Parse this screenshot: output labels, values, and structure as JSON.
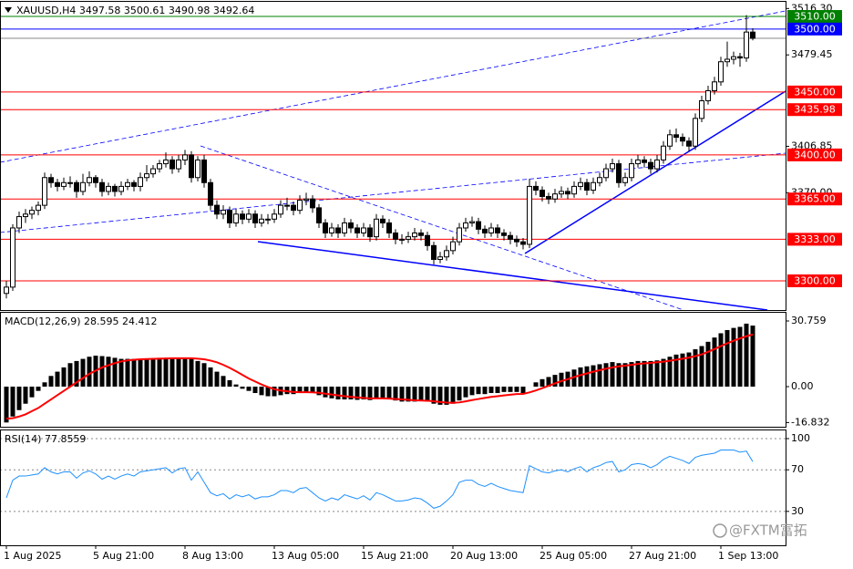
{
  "chart_data": [
    {
      "type": "candlestick",
      "title": "XAUUSD,H4  3497.58 3500.61 3490.98 3492.64",
      "ylim": [
        3276.8,
        3521.6
      ],
      "yticks": [
        {
          "value": 3516.3,
          "label": "3516.30"
        },
        3479.45,
        3406.85,
        {
          "value": 3370,
          "label": "3370.00"
        }
      ],
      "up_color": "#ffffff",
      "down_color": "#000000",
      "edge_color": "#000000",
      "levels": [
        {
          "value": 3510,
          "label": "3510.00",
          "color": "#008000"
        },
        {
          "value": 3500,
          "label": "3500.00",
          "color": "#0000ff"
        },
        {
          "value": 3450,
          "label": "3450.00",
          "color": "#ff0000"
        },
        {
          "value": 3435.98,
          "label": "3435.98",
          "color": "#ff0000"
        },
        {
          "value": 3400,
          "label": "3400.00",
          "color": "#ff0000"
        },
        {
          "value": 3365,
          "label": "3365.00",
          "color": "#ff0000"
        },
        {
          "value": 3333,
          "label": "3333.00",
          "color": "#ff0000"
        },
        {
          "value": 3300,
          "label": "3300.00",
          "color": "#ff0000"
        }
      ],
      "ohlc": [
        [
          3290,
          3300,
          3286,
          3295
        ],
        [
          3295,
          3345,
          3292,
          3342
        ],
        [
          3342,
          3355,
          3338,
          3351
        ],
        [
          3351,
          3357,
          3346,
          3353
        ],
        [
          3353,
          3359,
          3349,
          3356
        ],
        [
          3356,
          3363,
          3352,
          3360
        ],
        [
          3360,
          3386,
          3357,
          3382
        ],
        [
          3382,
          3385,
          3374,
          3378
        ],
        [
          3378,
          3381,
          3371,
          3375
        ],
        [
          3375,
          3382,
          3372,
          3378
        ],
        [
          3378,
          3383,
          3374,
          3378
        ],
        [
          3378,
          3380,
          3366,
          3371
        ],
        [
          3371,
          3385,
          3368,
          3378
        ],
        [
          3378,
          3387,
          3375,
          3382
        ],
        [
          3382,
          3384,
          3374,
          3378
        ],
        [
          3378,
          3381,
          3367,
          3371
        ],
        [
          3371,
          3378,
          3368,
          3375
        ],
        [
          3375,
          3377,
          3367,
          3371
        ],
        [
          3371,
          3379,
          3368,
          3375
        ],
        [
          3375,
          3381,
          3372,
          3378
        ],
        [
          3378,
          3380,
          3371,
          3375
        ],
        [
          3375,
          3386,
          3371,
          3382
        ],
        [
          3382,
          3392,
          3379,
          3385
        ],
        [
          3385,
          3392,
          3382,
          3389
        ],
        [
          3389,
          3396,
          3386,
          3393
        ],
        [
          3393,
          3402,
          3390,
          3396
        ],
        [
          3396,
          3399,
          3385,
          3389
        ],
        [
          3389,
          3400,
          3386,
          3396
        ],
        [
          3396,
          3404,
          3392,
          3400
        ],
        [
          3400,
          3403,
          3378,
          3382
        ],
        [
          3382,
          3399,
          3379,
          3396
        ],
        [
          3396,
          3400,
          3374,
          3378
        ],
        [
          3378,
          3381,
          3356,
          3360
        ],
        [
          3360,
          3364,
          3349,
          3353
        ],
        [
          3353,
          3360,
          3349,
          3356
        ],
        [
          3356,
          3359,
          3342,
          3346
        ],
        [
          3346,
          3357,
          3343,
          3353
        ],
        [
          3353,
          3356,
          3345,
          3349
        ],
        [
          3349,
          3357,
          3346,
          3353
        ],
        [
          3353,
          3356,
          3342,
          3346
        ],
        [
          3346,
          3353,
          3343,
          3349
        ],
        [
          3349,
          3353,
          3345,
          3349
        ],
        [
          3349,
          3357,
          3346,
          3353
        ],
        [
          3353,
          3364,
          3350,
          3360
        ],
        [
          3360,
          3366,
          3356,
          3360
        ],
        [
          3360,
          3363,
          3352,
          3356
        ],
        [
          3356,
          3368,
          3353,
          3364
        ],
        [
          3364,
          3370,
          3360,
          3365
        ],
        [
          3365,
          3368,
          3354,
          3358
        ],
        [
          3358,
          3361,
          3342,
          3346
        ],
        [
          3346,
          3349,
          3334,
          3338
        ],
        [
          3338,
          3346,
          3335,
          3342
        ],
        [
          3342,
          3345,
          3334,
          3338
        ],
        [
          3338,
          3350,
          3335,
          3346
        ],
        [
          3346,
          3349,
          3338,
          3342
        ],
        [
          3342,
          3345,
          3334,
          3338
        ],
        [
          3338,
          3346,
          3335,
          3342
        ],
        [
          3342,
          3345,
          3331,
          3335
        ],
        [
          3335,
          3353,
          3332,
          3349
        ],
        [
          3349,
          3352,
          3342,
          3346
        ],
        [
          3346,
          3349,
          3334,
          3338
        ],
        [
          3338,
          3341,
          3329,
          3333
        ],
        [
          3333,
          3337,
          3329,
          3333
        ],
        [
          3333,
          3339,
          3330,
          3335
        ],
        [
          3335,
          3342,
          3332,
          3338
        ],
        [
          3338,
          3341,
          3332,
          3336
        ],
        [
          3336,
          3339,
          3324,
          3328
        ],
        [
          3328,
          3331,
          3313,
          3317
        ],
        [
          3317,
          3323,
          3314,
          3319
        ],
        [
          3319,
          3328,
          3316,
          3324
        ],
        [
          3324,
          3335,
          3321,
          3331
        ],
        [
          3331,
          3346,
          3328,
          3342
        ],
        [
          3342,
          3350,
          3339,
          3346
        ],
        [
          3346,
          3351,
          3343,
          3347
        ],
        [
          3347,
          3350,
          3337,
          3341
        ],
        [
          3341,
          3344,
          3334,
          3338
        ],
        [
          3338,
          3346,
          3335,
          3342
        ],
        [
          3342,
          3345,
          3334,
          3338
        ],
        [
          3338,
          3341,
          3332,
          3336
        ],
        [
          3336,
          3339,
          3329,
          3333
        ],
        [
          3333,
          3336,
          3327,
          3331
        ],
        [
          3331,
          3334,
          3325,
          3329
        ],
        [
          3329,
          3381,
          3326,
          3375
        ],
        [
          3375,
          3379,
          3368,
          3372
        ],
        [
          3372,
          3375,
          3363,
          3367
        ],
        [
          3367,
          3370,
          3361,
          3365
        ],
        [
          3365,
          3373,
          3362,
          3369
        ],
        [
          3369,
          3375,
          3366,
          3371
        ],
        [
          3371,
          3374,
          3365,
          3369
        ],
        [
          3369,
          3379,
          3366,
          3375
        ],
        [
          3375,
          3382,
          3372,
          3378
        ],
        [
          3378,
          3381,
          3368,
          3372
        ],
        [
          3372,
          3382,
          3369,
          3378
        ],
        [
          3378,
          3386,
          3375,
          3382
        ],
        [
          3382,
          3393,
          3379,
          3389
        ],
        [
          3389,
          3397,
          3386,
          3393
        ],
        [
          3393,
          3396,
          3374,
          3378
        ],
        [
          3378,
          3386,
          3375,
          3382
        ],
        [
          3382,
          3397,
          3379,
          3393
        ],
        [
          3393,
          3400,
          3390,
          3396
        ],
        [
          3396,
          3399,
          3390,
          3394
        ],
        [
          3394,
          3397,
          3385,
          3389
        ],
        [
          3389,
          3400,
          3386,
          3396
        ],
        [
          3396,
          3411,
          3393,
          3407
        ],
        [
          3407,
          3420,
          3404,
          3416
        ],
        [
          3416,
          3421,
          3410,
          3414
        ],
        [
          3414,
          3417,
          3407,
          3411
        ],
        [
          3411,
          3414,
          3403,
          3407
        ],
        [
          3407,
          3433,
          3404,
          3429
        ],
        [
          3429,
          3447,
          3426,
          3443
        ],
        [
          3443,
          3455,
          3440,
          3451
        ],
        [
          3451,
          3462,
          3448,
          3458
        ],
        [
          3458,
          3478,
          3455,
          3474
        ],
        [
          3474,
          3490,
          3470,
          3476
        ],
        [
          3476,
          3482,
          3472,
          3478
        ],
        [
          3478,
          3481,
          3470,
          3477
        ],
        [
          3477,
          3511,
          3474,
          3497.58
        ],
        [
          3497.58,
          3500.61,
          3490.98,
          3492.64
        ]
      ]
    },
    {
      "type": "bar",
      "title": "MACD(12,26,9) 28.595 24.412",
      "ylim": [
        -18.8,
        34.6
      ],
      "yticks": [
        30.759,
        {
          "value": 0,
          "label": "0.00"
        },
        -16.832
      ],
      "color": "#000000",
      "signal_color": "#ff0000",
      "values": [
        -16.8,
        -14,
        -11,
        -8,
        -5,
        -2,
        2,
        5,
        7,
        9,
        11,
        12,
        13,
        14,
        14.5,
        14.3,
        14,
        13.5,
        13,
        13,
        13,
        13,
        13,
        13.2,
        13.5,
        13.5,
        13.3,
        13.2,
        13.3,
        13,
        12,
        11,
        9,
        7,
        5,
        3,
        1,
        -1,
        -2,
        -3,
        -4,
        -4.5,
        -4.5,
        -4,
        -3.5,
        -3.5,
        -3,
        -2.5,
        -3,
        -4,
        -5,
        -5.5,
        -6,
        -6,
        -6,
        -6.2,
        -6,
        -6.3,
        -5.5,
        -5.5,
        -6,
        -6.5,
        -7,
        -7,
        -7,
        -6.8,
        -7,
        -8,
        -8.5,
        -8.5,
        -8,
        -6.5,
        -5,
        -4,
        -3.5,
        -3.5,
        -3,
        -3,
        -2.5,
        -2.5,
        -2.5,
        -3,
        0,
        2,
        3.5,
        4.5,
        5.5,
        6.5,
        7,
        8,
        9,
        9.5,
        10,
        10.5,
        11,
        11.5,
        11,
        11,
        11.5,
        12,
        12,
        12,
        12.3,
        13,
        14,
        15,
        15.5,
        16,
        17.5,
        19,
        21,
        23,
        25,
        26.5,
        27.5,
        28,
        29.5,
        28.595
      ],
      "signal": [
        -15,
        -14.8,
        -14,
        -13,
        -11.5,
        -10,
        -8,
        -6,
        -4,
        -2,
        0,
        2,
        4,
        6,
        7.5,
        9,
        10,
        11,
        11.8,
        12.3,
        12.6,
        12.8,
        12.9,
        13,
        13.1,
        13.2,
        13.3,
        13.3,
        13.3,
        13.3,
        13.1,
        12.8,
        12.2,
        11.4,
        10.2,
        8.8,
        7.2,
        5.5,
        3.8,
        2.4,
        1,
        -0.2,
        -1.2,
        -1.8,
        -2.2,
        -2.5,
        -2.6,
        -2.6,
        -2.7,
        -2.9,
        -3.3,
        -3.7,
        -4.1,
        -4.5,
        -4.8,
        -5.1,
        -5.3,
        -5.5,
        -5.5,
        -5.5,
        -5.6,
        -5.8,
        -6,
        -6.2,
        -6.4,
        -6.5,
        -6.6,
        -6.9,
        -7.2,
        -7.5,
        -7.6,
        -7.4,
        -6.9,
        -6.3,
        -5.8,
        -5.3,
        -4.8,
        -4.5,
        -4.1,
        -3.8,
        -3.5,
        -3.4,
        -2.7,
        -1.8,
        -0.7,
        0.4,
        1.5,
        2.6,
        3.5,
        4.5,
        5.4,
        6.2,
        7,
        7.7,
        8.4,
        9,
        9.5,
        9.8,
        10.2,
        10.6,
        10.9,
        11.1,
        11.4,
        11.7,
        12.1,
        12.6,
        13.1,
        13.6,
        14.3,
        15.1,
        16.3,
        17.6,
        19,
        20.3,
        21.5,
        22.6,
        23.6,
        24.412
      ]
    },
    {
      "type": "line",
      "title": "RSI(14) 77.8559",
      "ylim": [
        -2.6,
        107.9
      ],
      "yticks": [
        100,
        70,
        30
      ],
      "grid": true,
      "color": "#1e90ff",
      "values": [
        43,
        60,
        64,
        64,
        65,
        66,
        72,
        68,
        66,
        68,
        68,
        62,
        67,
        69,
        66,
        61,
        64,
        61,
        64,
        66,
        64,
        68,
        69,
        70,
        71,
        72,
        67,
        71,
        72,
        60,
        68,
        58,
        48,
        45,
        47,
        42,
        46,
        44,
        46,
        42,
        44,
        44,
        46,
        50,
        50,
        48,
        52,
        53,
        48,
        43,
        40,
        43,
        41,
        46,
        44,
        42,
        45,
        41,
        48,
        46,
        43,
        40,
        40,
        41,
        43,
        42,
        38,
        33,
        35,
        40,
        46,
        58,
        60,
        60,
        56,
        54,
        57,
        54,
        52,
        50,
        49,
        48,
        74,
        71,
        68,
        67,
        69,
        70,
        68,
        71,
        73,
        68,
        72,
        74,
        77,
        78,
        68,
        70,
        75,
        76,
        75,
        72,
        75,
        80,
        83,
        81,
        79,
        76,
        82,
        84,
        85,
        86,
        89,
        89,
        89,
        87,
        88,
        77.8559
      ],
      "categories": [
        "1 Aug 2025",
        null,
        null,
        null,
        null,
        null,
        null,
        null,
        null,
        null,
        null,
        null,
        null,
        null,
        "5 Aug 21:00",
        null,
        null,
        null,
        null,
        null,
        null,
        null,
        null,
        null,
        null,
        null,
        null,
        null,
        "8 Aug 13:00",
        null,
        null,
        null,
        null,
        null,
        null,
        null,
        null,
        null,
        null,
        null,
        null,
        null,
        "13 Aug 05:00",
        null,
        null,
        null,
        null,
        null,
        null,
        null,
        null,
        null,
        null,
        null,
        null,
        null,
        "15 Aug 21:00",
        null,
        null,
        null,
        null,
        null,
        null,
        null,
        null,
        null,
        null,
        null,
        null,
        null,
        "20 Aug 13:00",
        null,
        null,
        null,
        null,
        null,
        null,
        null,
        null,
        null,
        null,
        null,
        null,
        null,
        "25 Aug 05:00",
        null,
        null,
        null,
        null,
        null,
        null,
        null,
        null,
        null,
        null,
        null,
        null,
        null,
        "27 Aug 21:00",
        null,
        null,
        null,
        null,
        null,
        null,
        null,
        null,
        null,
        null,
        null,
        null,
        null,
        "1 Sep 13:00",
        null,
        null,
        null,
        null,
        null
      ]
    }
  ],
  "watermark": "@FXTM富拓"
}
